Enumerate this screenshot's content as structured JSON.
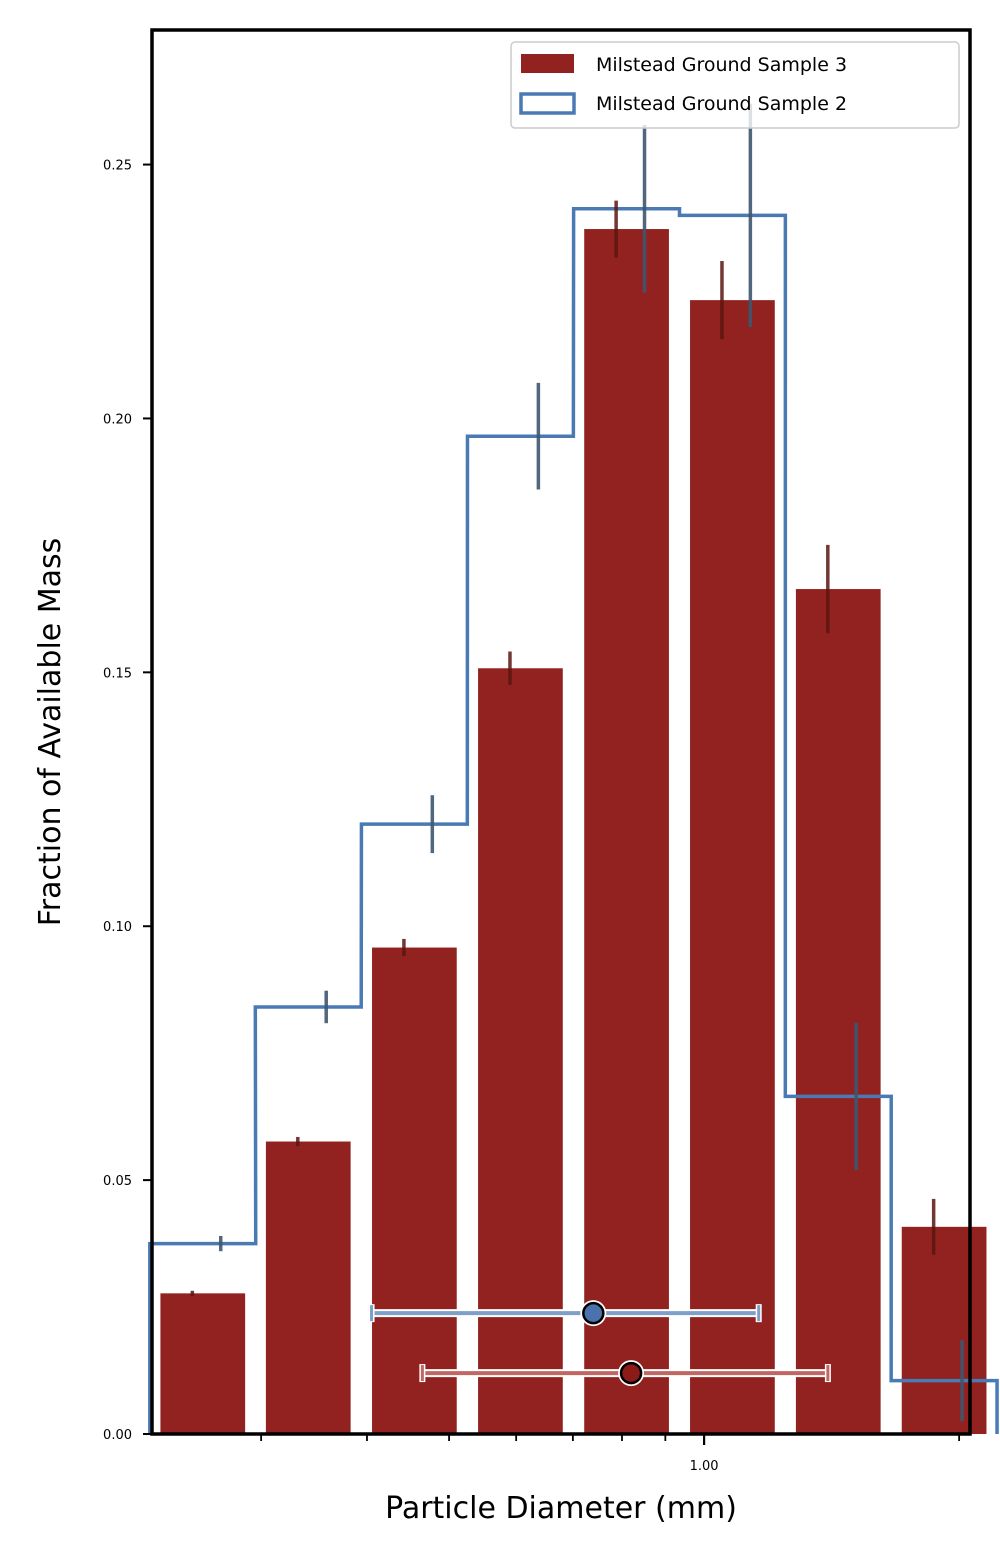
{
  "chart_data": {
    "type": "bar",
    "xlabel": "Particle Diameter (mm)",
    "ylabel": "Fraction of Available Mass",
    "x_scale": "log",
    "xlim": [
      0.223,
      2.06
    ],
    "ylim": [
      0.0,
      0.2765
    ],
    "yticks": [
      0.0,
      0.05,
      0.1,
      0.15,
      0.2,
      0.25
    ],
    "ytick_labels": [
      "0.00",
      "0.05",
      "0.10",
      "0.15",
      "0.20",
      "0.25"
    ],
    "xticks_major": [
      1.0
    ],
    "xtick_labels": [
      "1.00"
    ],
    "xticks_minor": [
      0.3,
      0.4,
      0.5,
      0.6,
      0.7,
      0.8,
      0.9,
      2.0
    ],
    "legend_position": "upper right",
    "bar_centers": [
      0.283,
      0.381,
      0.508,
      0.682,
      0.912,
      1.22,
      1.63,
      2.18
    ],
    "series": [
      {
        "name": "Milstead Ground Sample 3",
        "style": "filled bars",
        "color": "#922220",
        "errorbar_color": "#5a1510",
        "values": [
          0.0277,
          0.0576,
          0.0958,
          0.1508,
          0.2373,
          0.2233,
          0.1664,
          0.0408
        ],
        "errors": [
          0.0005,
          0.0009,
          0.0017,
          0.0033,
          0.0056,
          0.0077,
          0.0087,
          0.0055
        ],
        "mean_marker": {
          "x": 0.82,
          "y": 0.012,
          "x_low": 0.465,
          "x_high": 1.4
        }
      },
      {
        "name": "Milstead Ground Sample 2",
        "style": "step outline",
        "color": "#4a7ab3",
        "errorbar_color": "#3d5670",
        "values": [
          0.0375,
          0.0841,
          0.1201,
          0.1965,
          0.2413,
          0.24,
          0.0665,
          0.0105
        ],
        "errors": [
          0.0015,
          0.0032,
          0.0057,
          0.0105,
          0.0165,
          0.022,
          0.0145,
          0.008
        ],
        "mean_marker": {
          "x": 0.74,
          "y": 0.0238,
          "x_low": 0.405,
          "x_high": 1.16
        }
      }
    ]
  },
  "colors": {
    "bar_fill": "#922220",
    "step_line": "#4a7ab3",
    "marker_blue": "#4a72ad",
    "marker_red": "#8b1a18"
  }
}
